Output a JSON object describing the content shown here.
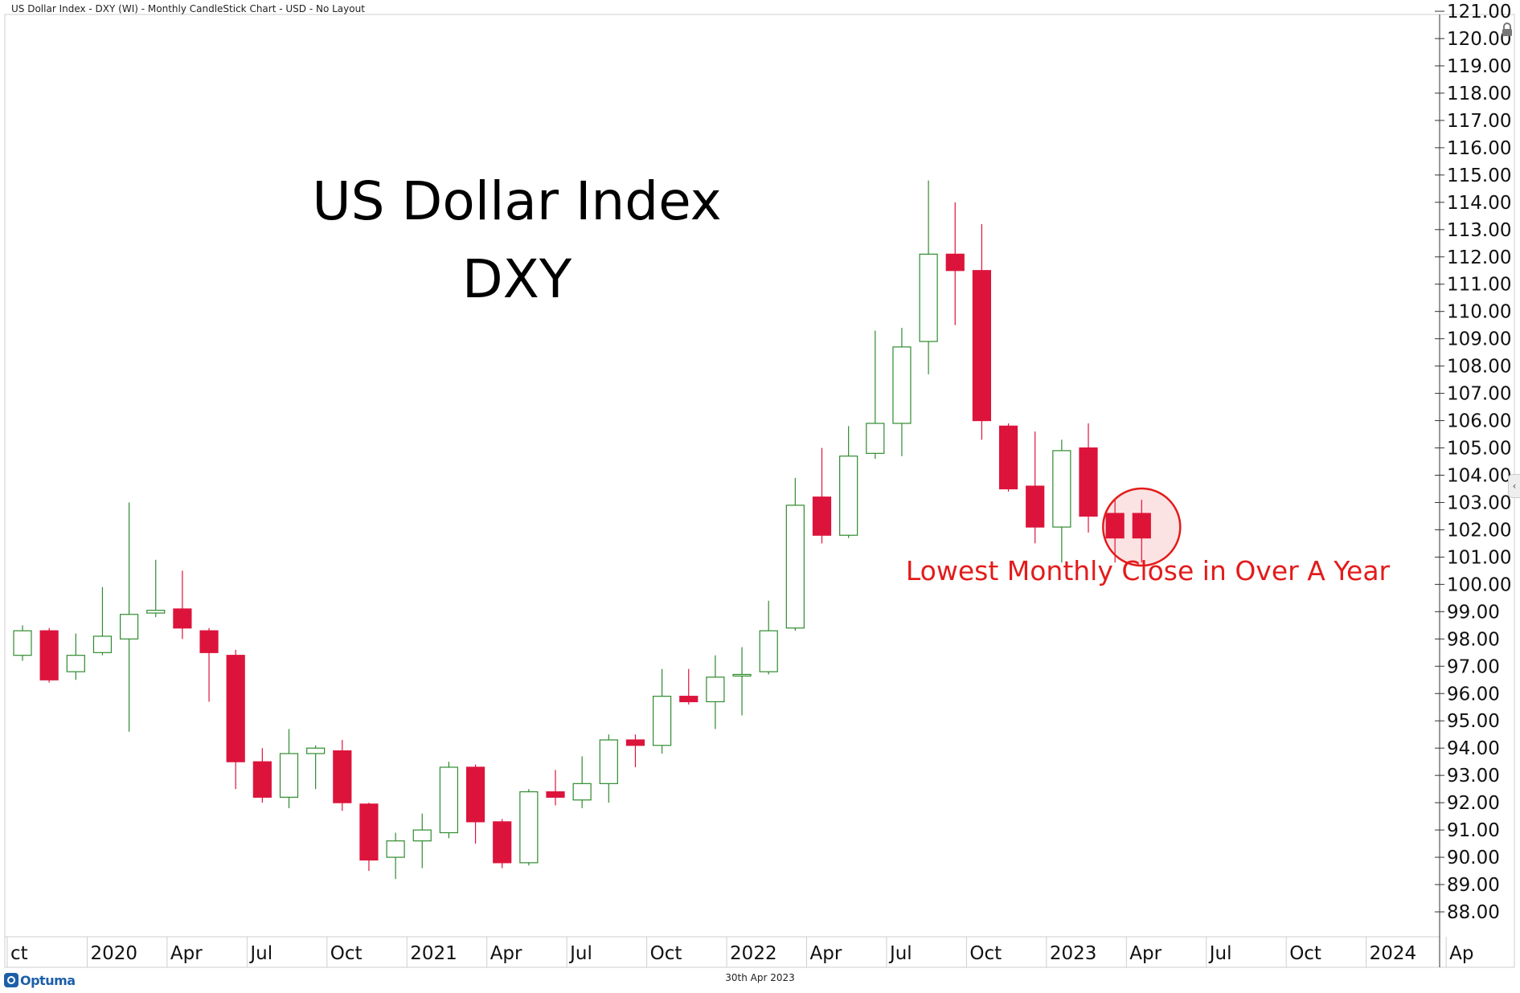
{
  "header": {
    "title": "US Dollar Index - DXY (WI) - Monthly CandleStick Chart - USD - No Layout"
  },
  "footer": {
    "date": "30th Apr 2023",
    "logo_text": "Optuma"
  },
  "icons": {
    "lock": "lock-icon",
    "collapse": "chevron-left-icon",
    "logo": "optuma-logo-icon"
  },
  "colors": {
    "up": "#2e8b2e",
    "down": "#dc143c",
    "annotation": "#e31b1b",
    "axis": "#333333"
  },
  "chart_data": {
    "type": "candlestick",
    "title": "US Dollar Index",
    "subtitle": "DXY",
    "annotation": "Lowest Monthly Close in Over A Year",
    "ylim": [
      87.3,
      121.0
    ],
    "y_ticks": [
      "88.00",
      "89.00",
      "90.00",
      "91.00",
      "92.00",
      "93.00",
      "94.00",
      "95.00",
      "96.00",
      "97.00",
      "98.00",
      "99.00",
      "100.00",
      "101.00",
      "102.00",
      "103.00",
      "104.00",
      "105.00",
      "106.00",
      "107.00",
      "108.00",
      "109.00",
      "110.00",
      "111.00",
      "112.00",
      "113.00",
      "114.00",
      "115.00",
      "116.00",
      "117.00",
      "118.00",
      "119.00",
      "120.00",
      "121.00"
    ],
    "x_ticks": [
      {
        "label": "ct",
        "month": "2019-10"
      },
      {
        "label": "2020",
        "month": "2020-01"
      },
      {
        "label": "Apr",
        "month": "2020-04"
      },
      {
        "label": "Jul",
        "month": "2020-07"
      },
      {
        "label": "Oct",
        "month": "2020-10"
      },
      {
        "label": "2021",
        "month": "2021-01"
      },
      {
        "label": "Apr",
        "month": "2021-04"
      },
      {
        "label": "Jul",
        "month": "2021-07"
      },
      {
        "label": "Oct",
        "month": "2021-10"
      },
      {
        "label": "2022",
        "month": "2022-01"
      },
      {
        "label": "Apr",
        "month": "2022-04"
      },
      {
        "label": "Jul",
        "month": "2022-07"
      },
      {
        "label": "Oct",
        "month": "2022-10"
      },
      {
        "label": "2023",
        "month": "2023-01"
      },
      {
        "label": "Apr",
        "month": "2023-04"
      },
      {
        "label": "Jul",
        "month": "2023-07"
      },
      {
        "label": "Oct",
        "month": "2023-10"
      },
      {
        "label": "2024",
        "month": "2024-01"
      },
      {
        "label": "Ap",
        "month": "2024-04"
      }
    ],
    "highlight_month": "2023-04",
    "candles": [
      {
        "month": "2019-10",
        "open": 97.4,
        "high": 98.5,
        "low": 97.2,
        "close": 98.3
      },
      {
        "month": "2019-11",
        "open": 98.3,
        "high": 98.4,
        "low": 96.4,
        "close": 96.5
      },
      {
        "month": "2019-12",
        "open": 96.8,
        "high": 98.2,
        "low": 96.5,
        "close": 97.4
      },
      {
        "month": "2020-01",
        "open": 97.5,
        "high": 99.9,
        "low": 97.4,
        "close": 98.1
      },
      {
        "month": "2020-02",
        "open": 98.0,
        "high": 103.0,
        "low": 94.6,
        "close": 98.9
      },
      {
        "month": "2020-03",
        "open": 98.95,
        "high": 100.9,
        "low": 98.8,
        "close": 99.05
      },
      {
        "month": "2020-04",
        "open": 99.1,
        "high": 100.5,
        "low": 98.0,
        "close": 98.4
      },
      {
        "month": "2020-05",
        "open": 98.3,
        "high": 98.4,
        "low": 95.7,
        "close": 97.5
      },
      {
        "month": "2020-06",
        "open": 97.4,
        "high": 97.6,
        "low": 92.5,
        "close": 93.5
      },
      {
        "month": "2020-07",
        "open": 93.5,
        "high": 94.0,
        "low": 92.0,
        "close": 92.2
      },
      {
        "month": "2020-08",
        "open": 92.2,
        "high": 94.7,
        "low": 91.8,
        "close": 93.8
      },
      {
        "month": "2020-09",
        "open": 93.8,
        "high": 94.1,
        "low": 92.5,
        "close": 94.0
      },
      {
        "month": "2020-10",
        "open": 93.9,
        "high": 94.3,
        "low": 91.7,
        "close": 92.0
      },
      {
        "month": "2020-11",
        "open": 91.95,
        "high": 92.0,
        "low": 89.5,
        "close": 89.9
      },
      {
        "month": "2020-12",
        "open": 90.0,
        "high": 90.9,
        "low": 89.2,
        "close": 90.6
      },
      {
        "month": "2021-01",
        "open": 90.6,
        "high": 91.6,
        "low": 89.6,
        "close": 91.0
      },
      {
        "month": "2021-02",
        "open": 90.9,
        "high": 93.5,
        "low": 90.7,
        "close": 93.3
      },
      {
        "month": "2021-03",
        "open": 93.3,
        "high": 93.4,
        "low": 90.5,
        "close": 91.3
      },
      {
        "month": "2021-04",
        "open": 91.3,
        "high": 91.4,
        "low": 89.6,
        "close": 89.8
      },
      {
        "month": "2021-05",
        "open": 89.8,
        "high": 92.5,
        "low": 89.7,
        "close": 92.4
      },
      {
        "month": "2021-06",
        "open": 92.4,
        "high": 93.2,
        "low": 91.9,
        "close": 92.2
      },
      {
        "month": "2021-07",
        "open": 92.1,
        "high": 93.7,
        "low": 91.8,
        "close": 92.7
      },
      {
        "month": "2021-08",
        "open": 92.7,
        "high": 94.5,
        "low": 92.0,
        "close": 94.3
      },
      {
        "month": "2021-09",
        "open": 94.3,
        "high": 94.5,
        "low": 93.3,
        "close": 94.1
      },
      {
        "month": "2021-10",
        "open": 94.1,
        "high": 96.9,
        "low": 93.8,
        "close": 95.9
      },
      {
        "month": "2021-11",
        "open": 95.9,
        "high": 96.9,
        "low": 95.6,
        "close": 95.7
      },
      {
        "month": "2021-12",
        "open": 95.7,
        "high": 97.4,
        "low": 94.7,
        "close": 96.6
      },
      {
        "month": "2022-01",
        "open": 96.7,
        "high": 97.7,
        "low": 95.2,
        "close": 96.7
      },
      {
        "month": "2022-02",
        "open": 96.8,
        "high": 99.4,
        "low": 96.7,
        "close": 98.3
      },
      {
        "month": "2022-03",
        "open": 98.4,
        "high": 103.9,
        "low": 98.3,
        "close": 102.9
      },
      {
        "month": "2022-04",
        "open": 103.2,
        "high": 105.0,
        "low": 101.5,
        "close": 101.8
      },
      {
        "month": "2022-05",
        "open": 101.8,
        "high": 105.8,
        "low": 101.7,
        "close": 104.7
      },
      {
        "month": "2022-06",
        "open": 104.8,
        "high": 109.3,
        "low": 104.6,
        "close": 105.9
      },
      {
        "month": "2022-07",
        "open": 105.9,
        "high": 109.4,
        "low": 104.7,
        "close": 108.7
      },
      {
        "month": "2022-08",
        "open": 108.9,
        "high": 114.8,
        "low": 107.7,
        "close": 112.1
      },
      {
        "month": "2022-09",
        "open": 112.1,
        "high": 114.0,
        "low": 109.5,
        "close": 111.5
      },
      {
        "month": "2022-10",
        "open": 111.5,
        "high": 113.2,
        "low": 105.3,
        "close": 106.0
      },
      {
        "month": "2022-11",
        "open": 105.8,
        "high": 105.9,
        "low": 103.4,
        "close": 103.5
      },
      {
        "month": "2022-12",
        "open": 103.6,
        "high": 105.6,
        "low": 101.5,
        "close": 102.1
      },
      {
        "month": "2023-01",
        "open": 102.1,
        "high": 105.3,
        "low": 100.8,
        "close": 104.9
      },
      {
        "month": "2023-02",
        "open": 105.0,
        "high": 105.9,
        "low": 101.9,
        "close": 102.5
      },
      {
        "month": "2023-03",
        "open": 102.6,
        "high": 103.1,
        "low": 100.8,
        "close": 101.7
      }
    ]
  }
}
